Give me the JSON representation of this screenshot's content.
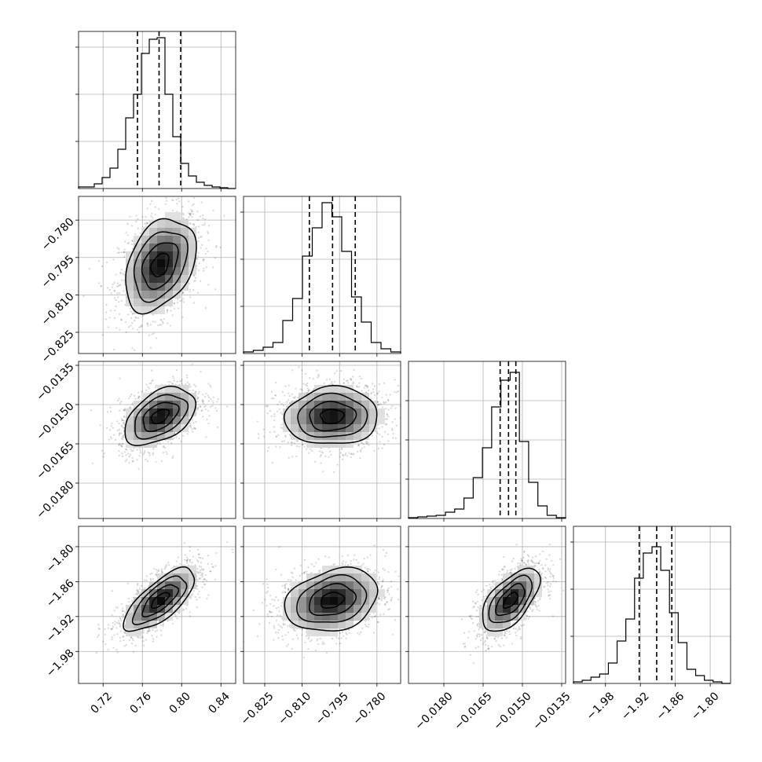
{
  "chart_data": {
    "type": "corner",
    "grid": true,
    "parameters": [
      {
        "range": [
          0.695,
          0.855
        ],
        "ticks": [
          0.72,
          0.76,
          0.8,
          0.84
        ],
        "tick_labels": [
          "0.72",
          "0.76",
          "0.80",
          "0.84"
        ],
        "quantiles": [
          0.755,
          0.777,
          0.799
        ],
        "hist_max": 1.0,
        "hist_ticks": [
          0.3,
          0.6,
          0.9
        ],
        "hist": [
          0.01,
          0.01,
          0.03,
          0.07,
          0.13,
          0.25,
          0.45,
          0.6,
          0.86,
          0.95,
          0.96,
          0.6,
          0.33,
          0.16,
          0.08,
          0.04,
          0.02,
          0.01,
          0.005,
          0
        ]
      },
      {
        "range": [
          -0.8335,
          -0.7705
        ],
        "ticks": [
          -0.825,
          -0.81,
          -0.795,
          -0.78
        ],
        "tick_labels": [
          "−0.825",
          "−0.810",
          "−0.795",
          "−0.780"
        ],
        "quantiles": [
          -0.8071,
          -0.7978,
          -0.7887
        ],
        "hist_max": 1.0,
        "hist_ticks": [
          0.3,
          0.6,
          0.9
        ],
        "hist": [
          0.01,
          0.02,
          0.04,
          0.07,
          0.21,
          0.35,
          0.62,
          0.8,
          0.96,
          0.87,
          0.65,
          0.36,
          0.2,
          0.07,
          0.03,
          0.01
        ]
      },
      {
        "range": [
          -0.01935,
          -0.01335
        ],
        "ticks": [
          -0.018,
          -0.0165,
          -0.015,
          -0.0135
        ],
        "tick_labels": [
          "−0.0180",
          "−0.0165",
          "−0.0150",
          "−0.0135"
        ],
        "quantiles": [
          -0.01585,
          -0.01553,
          -0.01525
        ],
        "hist_max": 1.0,
        "hist_ticks": [
          0.25,
          0.5,
          0.75
        ],
        "hist": [
          0.005,
          0.01,
          0.015,
          0.02,
          0.04,
          0.06,
          0.13,
          0.26,
          0.45,
          0.71,
          0.88,
          0.93,
          0.49,
          0.23,
          0.08,
          0.02,
          0.005
        ]
      },
      {
        "range": [
          -2.035,
          -1.765
        ],
        "ticks": [
          -1.98,
          -1.92,
          -1.86,
          -1.8
        ],
        "tick_labels": [
          "−1.98",
          "−1.92",
          "−1.86",
          "−1.80"
        ],
        "quantiles": [
          -1.922,
          -1.892,
          -1.866
        ],
        "hist_max": 1.0,
        "hist_ticks": [
          0.3,
          0.6,
          0.9
        ],
        "hist": [
          0.01,
          0.02,
          0.04,
          0.06,
          0.13,
          0.27,
          0.41,
          0.67,
          0.83,
          0.87,
          0.72,
          0.45,
          0.26,
          0.09,
          0.05,
          0.02,
          0.01,
          0
        ]
      }
    ],
    "pairs": [
      {
        "row": 1,
        "col": 0,
        "center": [
          0.778,
          -0.798
        ],
        "sigma": [
          0.018,
          0.0093
        ],
        "rho": 0.35
      },
      {
        "row": 2,
        "col": 0,
        "center": [
          0.778,
          -0.01545
        ],
        "sigma": [
          0.018,
          0.00055
        ],
        "rho": 0.45
      },
      {
        "row": 2,
        "col": 1,
        "center": [
          -0.798,
          -0.01545
        ],
        "sigma": [
          0.0093,
          0.00055
        ],
        "rho": 0.05
      },
      {
        "row": 3,
        "col": 0,
        "center": [
          0.778,
          -1.892
        ],
        "sigma": [
          0.018,
          0.027
        ],
        "rho": 0.72
      },
      {
        "row": 3,
        "col": 1,
        "center": [
          -0.798,
          -1.892
        ],
        "sigma": [
          0.0093,
          0.027
        ],
        "rho": 0.25
      },
      {
        "row": 3,
        "col": 2,
        "center": [
          -0.01545,
          -1.892
        ],
        "sigma": [
          0.00055,
          0.027
        ],
        "rho": 0.6
      }
    ],
    "contour_sigma_levels": [
      0.5,
      1.0,
      1.5,
      2.0
    ]
  }
}
